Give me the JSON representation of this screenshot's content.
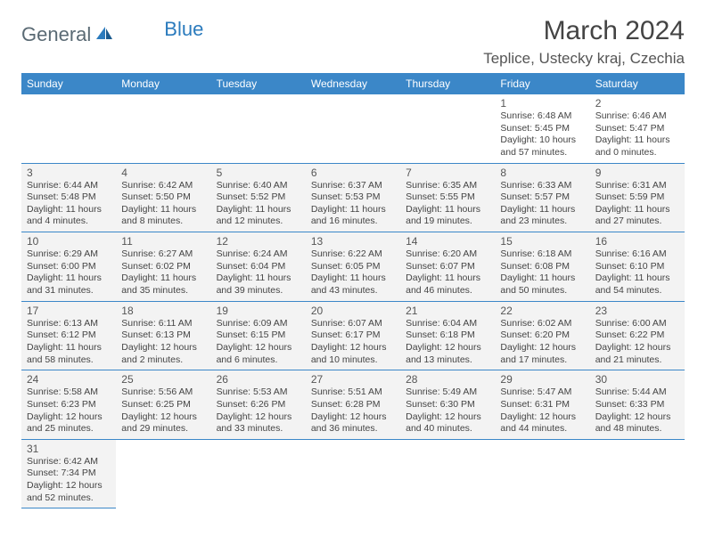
{
  "logo": {
    "text1": "General",
    "text2": "Blue"
  },
  "title": "March 2024",
  "location": "Teplice, Ustecky kraj, Czechia",
  "colors": {
    "header_bg": "#3b87c8",
    "header_text": "#ffffff",
    "border": "#3b87c8",
    "cell_bg_shade": "#f3f3f3",
    "cell_bg_white": "#ffffff",
    "logo_dark": "#5a6a74",
    "logo_blue": "#2b7bbd"
  },
  "weekdays": [
    "Sunday",
    "Monday",
    "Tuesday",
    "Wednesday",
    "Thursday",
    "Friday",
    "Saturday"
  ],
  "weeks": [
    [
      null,
      null,
      null,
      null,
      null,
      {
        "day": "1",
        "sunrise": "Sunrise: 6:48 AM",
        "sunset": "Sunset: 5:45 PM",
        "daylight1": "Daylight: 10 hours",
        "daylight2": "and 57 minutes."
      },
      {
        "day": "2",
        "sunrise": "Sunrise: 6:46 AM",
        "sunset": "Sunset: 5:47 PM",
        "daylight1": "Daylight: 11 hours",
        "daylight2": "and 0 minutes."
      }
    ],
    [
      {
        "day": "3",
        "sunrise": "Sunrise: 6:44 AM",
        "sunset": "Sunset: 5:48 PM",
        "daylight1": "Daylight: 11 hours",
        "daylight2": "and 4 minutes."
      },
      {
        "day": "4",
        "sunrise": "Sunrise: 6:42 AM",
        "sunset": "Sunset: 5:50 PM",
        "daylight1": "Daylight: 11 hours",
        "daylight2": "and 8 minutes."
      },
      {
        "day": "5",
        "sunrise": "Sunrise: 6:40 AM",
        "sunset": "Sunset: 5:52 PM",
        "daylight1": "Daylight: 11 hours",
        "daylight2": "and 12 minutes."
      },
      {
        "day": "6",
        "sunrise": "Sunrise: 6:37 AM",
        "sunset": "Sunset: 5:53 PM",
        "daylight1": "Daylight: 11 hours",
        "daylight2": "and 16 minutes."
      },
      {
        "day": "7",
        "sunrise": "Sunrise: 6:35 AM",
        "sunset": "Sunset: 5:55 PM",
        "daylight1": "Daylight: 11 hours",
        "daylight2": "and 19 minutes."
      },
      {
        "day": "8",
        "sunrise": "Sunrise: 6:33 AM",
        "sunset": "Sunset: 5:57 PM",
        "daylight1": "Daylight: 11 hours",
        "daylight2": "and 23 minutes."
      },
      {
        "day": "9",
        "sunrise": "Sunrise: 6:31 AM",
        "sunset": "Sunset: 5:59 PM",
        "daylight1": "Daylight: 11 hours",
        "daylight2": "and 27 minutes."
      }
    ],
    [
      {
        "day": "10",
        "sunrise": "Sunrise: 6:29 AM",
        "sunset": "Sunset: 6:00 PM",
        "daylight1": "Daylight: 11 hours",
        "daylight2": "and 31 minutes."
      },
      {
        "day": "11",
        "sunrise": "Sunrise: 6:27 AM",
        "sunset": "Sunset: 6:02 PM",
        "daylight1": "Daylight: 11 hours",
        "daylight2": "and 35 minutes."
      },
      {
        "day": "12",
        "sunrise": "Sunrise: 6:24 AM",
        "sunset": "Sunset: 6:04 PM",
        "daylight1": "Daylight: 11 hours",
        "daylight2": "and 39 minutes."
      },
      {
        "day": "13",
        "sunrise": "Sunrise: 6:22 AM",
        "sunset": "Sunset: 6:05 PM",
        "daylight1": "Daylight: 11 hours",
        "daylight2": "and 43 minutes."
      },
      {
        "day": "14",
        "sunrise": "Sunrise: 6:20 AM",
        "sunset": "Sunset: 6:07 PM",
        "daylight1": "Daylight: 11 hours",
        "daylight2": "and 46 minutes."
      },
      {
        "day": "15",
        "sunrise": "Sunrise: 6:18 AM",
        "sunset": "Sunset: 6:08 PM",
        "daylight1": "Daylight: 11 hours",
        "daylight2": "and 50 minutes."
      },
      {
        "day": "16",
        "sunrise": "Sunrise: 6:16 AM",
        "sunset": "Sunset: 6:10 PM",
        "daylight1": "Daylight: 11 hours",
        "daylight2": "and 54 minutes."
      }
    ],
    [
      {
        "day": "17",
        "sunrise": "Sunrise: 6:13 AM",
        "sunset": "Sunset: 6:12 PM",
        "daylight1": "Daylight: 11 hours",
        "daylight2": "and 58 minutes."
      },
      {
        "day": "18",
        "sunrise": "Sunrise: 6:11 AM",
        "sunset": "Sunset: 6:13 PM",
        "daylight1": "Daylight: 12 hours",
        "daylight2": "and 2 minutes."
      },
      {
        "day": "19",
        "sunrise": "Sunrise: 6:09 AM",
        "sunset": "Sunset: 6:15 PM",
        "daylight1": "Daylight: 12 hours",
        "daylight2": "and 6 minutes."
      },
      {
        "day": "20",
        "sunrise": "Sunrise: 6:07 AM",
        "sunset": "Sunset: 6:17 PM",
        "daylight1": "Daylight: 12 hours",
        "daylight2": "and 10 minutes."
      },
      {
        "day": "21",
        "sunrise": "Sunrise: 6:04 AM",
        "sunset": "Sunset: 6:18 PM",
        "daylight1": "Daylight: 12 hours",
        "daylight2": "and 13 minutes."
      },
      {
        "day": "22",
        "sunrise": "Sunrise: 6:02 AM",
        "sunset": "Sunset: 6:20 PM",
        "daylight1": "Daylight: 12 hours",
        "daylight2": "and 17 minutes."
      },
      {
        "day": "23",
        "sunrise": "Sunrise: 6:00 AM",
        "sunset": "Sunset: 6:22 PM",
        "daylight1": "Daylight: 12 hours",
        "daylight2": "and 21 minutes."
      }
    ],
    [
      {
        "day": "24",
        "sunrise": "Sunrise: 5:58 AM",
        "sunset": "Sunset: 6:23 PM",
        "daylight1": "Daylight: 12 hours",
        "daylight2": "and 25 minutes."
      },
      {
        "day": "25",
        "sunrise": "Sunrise: 5:56 AM",
        "sunset": "Sunset: 6:25 PM",
        "daylight1": "Daylight: 12 hours",
        "daylight2": "and 29 minutes."
      },
      {
        "day": "26",
        "sunrise": "Sunrise: 5:53 AM",
        "sunset": "Sunset: 6:26 PM",
        "daylight1": "Daylight: 12 hours",
        "daylight2": "and 33 minutes."
      },
      {
        "day": "27",
        "sunrise": "Sunrise: 5:51 AM",
        "sunset": "Sunset: 6:28 PM",
        "daylight1": "Daylight: 12 hours",
        "daylight2": "and 36 minutes."
      },
      {
        "day": "28",
        "sunrise": "Sunrise: 5:49 AM",
        "sunset": "Sunset: 6:30 PM",
        "daylight1": "Daylight: 12 hours",
        "daylight2": "and 40 minutes."
      },
      {
        "day": "29",
        "sunrise": "Sunrise: 5:47 AM",
        "sunset": "Sunset: 6:31 PM",
        "daylight1": "Daylight: 12 hours",
        "daylight2": "and 44 minutes."
      },
      {
        "day": "30",
        "sunrise": "Sunrise: 5:44 AM",
        "sunset": "Sunset: 6:33 PM",
        "daylight1": "Daylight: 12 hours",
        "daylight2": "and 48 minutes."
      }
    ],
    [
      {
        "day": "31",
        "sunrise": "Sunrise: 6:42 AM",
        "sunset": "Sunset: 7:34 PM",
        "daylight1": "Daylight: 12 hours",
        "daylight2": "and 52 minutes."
      },
      null,
      null,
      null,
      null,
      null,
      null
    ]
  ]
}
